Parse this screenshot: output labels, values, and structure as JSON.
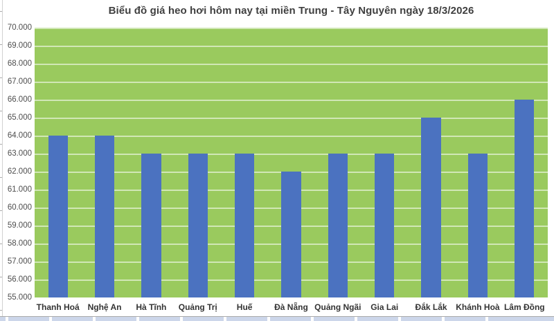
{
  "title": "Biểu đồ giá heo hơi hôm nay tại miền Trung - Tây Nguyên ngày 18/3/2026",
  "chart_data": {
    "type": "bar",
    "title": "Biểu đồ giá heo hơi hôm nay tại miền Trung - Tây Nguyên ngày 18/3/2026",
    "categories": [
      "Thanh Hoá",
      "Nghệ An",
      "Hà Tĩnh",
      "Quảng Trị",
      "Huế",
      "Đà Nẵng",
      "Quảng Ngãi",
      "Gia Lai",
      "Đắk Lắk",
      "Khánh Hoà",
      "Lâm Đồng"
    ],
    "values": [
      64000,
      64000,
      63000,
      63000,
      63000,
      62000,
      63000,
      63000,
      65000,
      63000,
      66000
    ],
    "xlabel": "",
    "ylabel": "",
    "ylim": [
      55000,
      70000
    ],
    "y_step": 1000,
    "y_ticks": [
      "70.000",
      "69.000",
      "68.000",
      "67.000",
      "66.000",
      "65.000",
      "64.000",
      "63.000",
      "62.000",
      "61.000",
      "60.000",
      "59.000",
      "58.000",
      "57.000",
      "56.000",
      "55.000"
    ],
    "grid": "horizontal",
    "legend_position": "none",
    "colors": {
      "bar": "#4b72c0",
      "plot_background": "#9aca5e",
      "gridline": "#d9e3c4",
      "text": "#3f3f3f"
    }
  }
}
